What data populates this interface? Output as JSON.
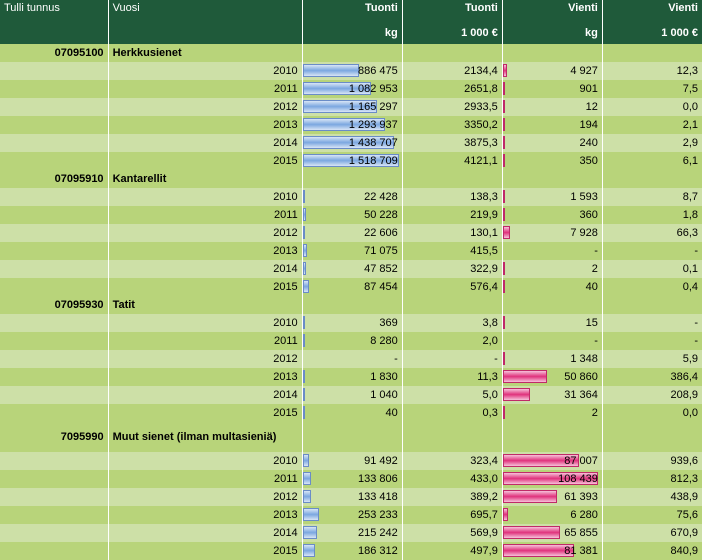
{
  "colors": {
    "header_bg": "#1f5a3a",
    "header_fg": "#ffffff",
    "row_light": "#cde0a7",
    "row_dark": "#b8d47a",
    "bar_blue": "#7ba7e0",
    "bar_pink": "#e0327c"
  },
  "header": {
    "c0": "Tulli tunnus",
    "c1": "Vuosi",
    "c2": "Tuonti",
    "c3": "Tuonti",
    "c4": "Vienti",
    "c5": "Vienti",
    "u2": "kg",
    "u3": "1 000 €",
    "u4": "kg",
    "u5": "1 000 €"
  },
  "bars": {
    "tuonti_kg_max": 1518709,
    "vienti_kg_max": 110000
  },
  "groups": [
    {
      "code": "07095100",
      "name": "Herkkusienet",
      "rows": [
        {
          "year": "2010",
          "tk": "886 475",
          "tk_n": 886475,
          "te": "2134,4",
          "vk": "4 927",
          "vk_n": 4927,
          "ve": "12,3"
        },
        {
          "year": "2011",
          "tk": "1 082 953",
          "tk_n": 1082953,
          "te": "2651,8",
          "vk": "901",
          "vk_n": 901,
          "ve": "7,5"
        },
        {
          "year": "2012",
          "tk": "1 165 297",
          "tk_n": 1165297,
          "te": "2933,5",
          "vk": "12",
          "vk_n": 12,
          "ve": "0,0"
        },
        {
          "year": "2013",
          "tk": "1 293 937",
          "tk_n": 1293937,
          "te": "3350,2",
          "vk": "194",
          "vk_n": 194,
          "ve": "2,1"
        },
        {
          "year": "2014",
          "tk": "1 438 707",
          "tk_n": 1438707,
          "te": "3875,3",
          "vk": "240",
          "vk_n": 240,
          "ve": "2,9"
        },
        {
          "year": "2015",
          "tk": "1 518 709",
          "tk_n": 1518709,
          "te": "4121,1",
          "vk": "350",
          "vk_n": 350,
          "ve": "6,1"
        }
      ]
    },
    {
      "code": "07095910",
      "name": "Kantarellit",
      "rows": [
        {
          "year": "2010",
          "tk": "22 428",
          "tk_n": 22428,
          "te": "138,3",
          "vk": "1 593",
          "vk_n": 1593,
          "ve": "8,7"
        },
        {
          "year": "2011",
          "tk": "50 228",
          "tk_n": 50228,
          "te": "219,9",
          "vk": "360",
          "vk_n": 360,
          "ve": "1,8"
        },
        {
          "year": "2012",
          "tk": "22 606",
          "tk_n": 22606,
          "te": "130,1",
          "vk": "7 928",
          "vk_n": 7928,
          "ve": "66,3"
        },
        {
          "year": "2013",
          "tk": "71 075",
          "tk_n": 71075,
          "te": "415,5",
          "vk": "-",
          "vk_n": 0,
          "ve": "-"
        },
        {
          "year": "2014",
          "tk": "47 852",
          "tk_n": 47852,
          "te": "322,9",
          "vk": "2",
          "vk_n": 2,
          "ve": "0,1"
        },
        {
          "year": "2015",
          "tk": "87 454",
          "tk_n": 87454,
          "te": "576,4",
          "vk": "40",
          "vk_n": 40,
          "ve": "0,4"
        }
      ]
    },
    {
      "code": "07095930",
      "name": "Tatit",
      "rows": [
        {
          "year": "2010",
          "tk": "369",
          "tk_n": 369,
          "te": "3,8",
          "vk": "15",
          "vk_n": 15,
          "ve": "-"
        },
        {
          "year": "2011",
          "tk": "8 280",
          "tk_n": 8280,
          "te": "2,0",
          "vk": "-",
          "vk_n": 0,
          "ve": "-"
        },
        {
          "year": "2012",
          "tk": "-",
          "tk_n": 0,
          "te": "-",
          "vk": "1 348",
          "vk_n": 1348,
          "ve": "5,9"
        },
        {
          "year": "2013",
          "tk": "1 830",
          "tk_n": 1830,
          "te": "11,3",
          "vk": "50 860",
          "vk_n": 50860,
          "ve": "386,4"
        },
        {
          "year": "2014",
          "tk": "1 040",
          "tk_n": 1040,
          "te": "5,0",
          "vk": "31 364",
          "vk_n": 31364,
          "ve": "208,9"
        },
        {
          "year": "2015",
          "tk": "40",
          "tk_n": 40,
          "te": "0,3",
          "vk": "2",
          "vk_n": 2,
          "ve": "0,0"
        }
      ]
    },
    {
      "code": "7095990",
      "name": "Muut sienet (ilman multasieniä)",
      "name_wrap": true,
      "rows": [
        {
          "year": "2010",
          "tk": "91 492",
          "tk_n": 91492,
          "te": "323,4",
          "vk": "87 007",
          "vk_n": 87007,
          "ve": "939,6"
        },
        {
          "year": "2011",
          "tk": "133 806",
          "tk_n": 133806,
          "te": "433,0",
          "vk": "108 439",
          "vk_n": 108439,
          "ve": "812,3"
        },
        {
          "year": "2012",
          "tk": "133 418",
          "tk_n": 133418,
          "te": "389,2",
          "vk": "61 393",
          "vk_n": 61393,
          "ve": "438,9"
        },
        {
          "year": "2013",
          "tk": "253 233",
          "tk_n": 253233,
          "te": "695,7",
          "vk": "6 280",
          "vk_n": 6280,
          "ve": "75,6"
        },
        {
          "year": "2014",
          "tk": "215 242",
          "tk_n": 215242,
          "te": "569,9",
          "vk": "65 855",
          "vk_n": 65855,
          "ve": "670,9"
        },
        {
          "year": "2015",
          "tk": "186 312",
          "tk_n": 186312,
          "te": "497,9",
          "vk": "81 381",
          "vk_n": 81381,
          "ve": "840,9"
        }
      ]
    }
  ]
}
